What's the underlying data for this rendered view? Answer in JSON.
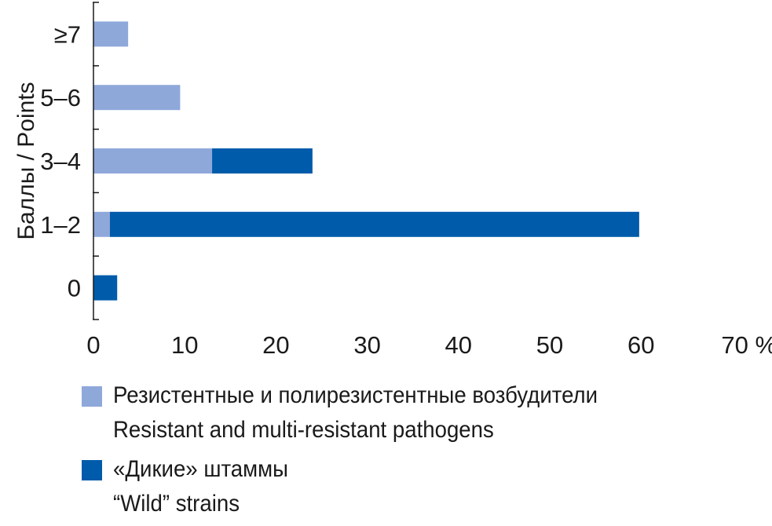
{
  "chart_data": {
    "type": "bar",
    "orientation": "horizontal",
    "stacked": true,
    "categories": [
      "0",
      "1–2",
      "3–4",
      "5–6",
      "≥7"
    ],
    "series": [
      {
        "name": "Резистентные и полирезистентные возбудители / Resistant and multi-resistant pathogens",
        "color": "#8fa8da",
        "values": [
          0,
          1.8,
          13,
          9.5,
          3.8
        ]
      },
      {
        "name": "«Дикие» штаммы / “Wild” strains",
        "color": "#005baa",
        "values": [
          2.6,
          58,
          11,
          0,
          0
        ]
      }
    ],
    "ylabel": "Баллы / Points",
    "xlim": [
      0,
      70
    ],
    "xticks": [
      "0",
      "10",
      "20",
      "30",
      "40",
      "50",
      "60",
      "70 %"
    ],
    "grid": false,
    "legend_position": "bottom"
  },
  "legend": {
    "items": [
      {
        "line1": "Резистентные и полирезистентные возбудители",
        "line2": "Resistant and multi-resistant pathogens",
        "color": "#8fa8da"
      },
      {
        "line1": "«Дикие» штаммы",
        "line2": "“Wild” strains",
        "color": "#005baa"
      }
    ]
  }
}
